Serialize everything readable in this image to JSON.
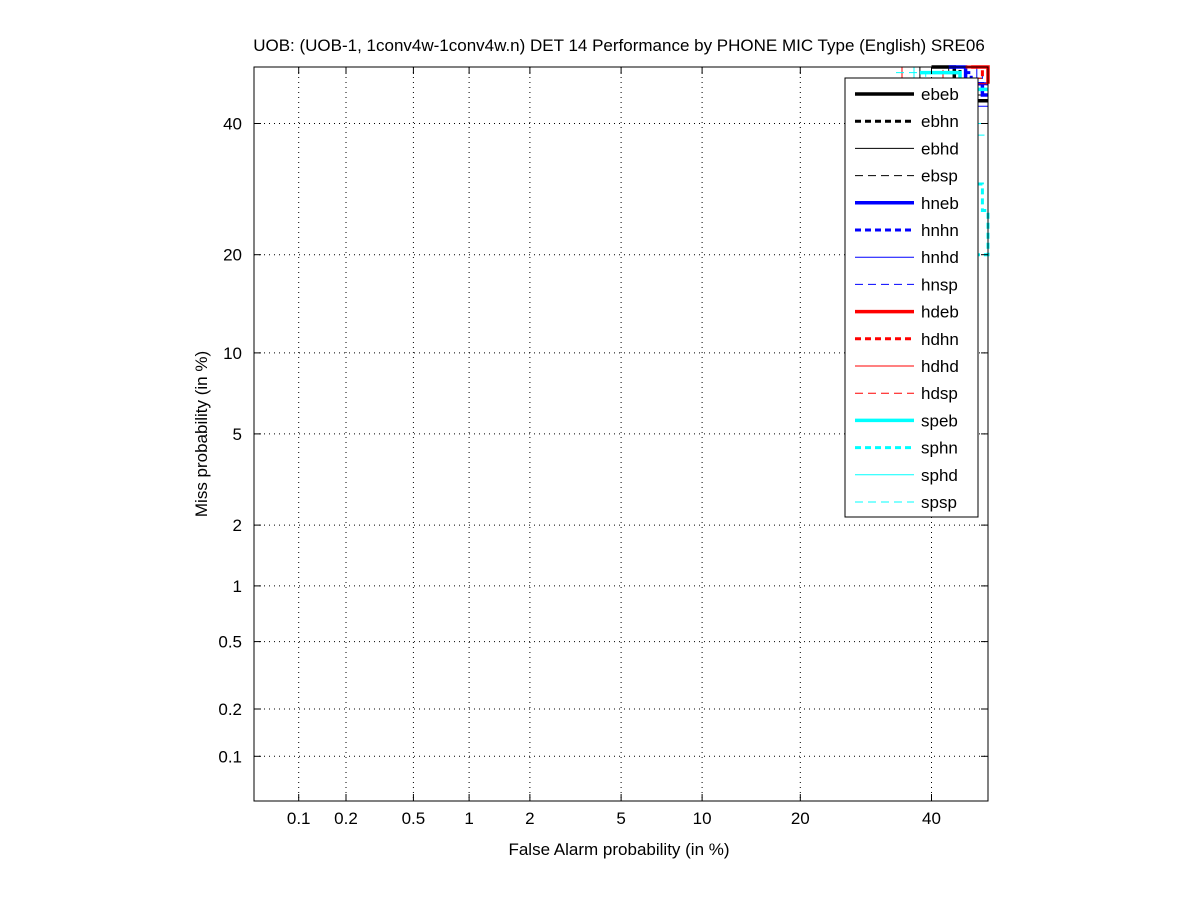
{
  "chart_data": {
    "type": "line",
    "title": "UOB: (UOB-1, 1conv4w-1conv4w.n) DET 14 Performance by PHONE MIC Type (English) SRE06",
    "xlabel": "False Alarm probability (in %)",
    "ylabel": "Miss probability (in %)",
    "scale": "normal-deviate (probit)",
    "xlim": [
      0.05,
      50
    ],
    "ylim": [
      0.05,
      50
    ],
    "x_ticks": [
      0.1,
      0.2,
      0.5,
      1,
      2,
      5,
      10,
      20,
      40
    ],
    "x_tick_labels": [
      "0.1",
      "0.2",
      "0.5",
      "1",
      "2",
      "5",
      "10",
      "20",
      "40"
    ],
    "y_ticks": [
      0.1,
      0.2,
      0.5,
      1,
      2,
      5,
      10,
      20,
      40
    ],
    "y_tick_labels": [
      "0.1",
      "0.2",
      "0.5",
      "1",
      "2",
      "5",
      "10",
      "20",
      "40"
    ],
    "grid": true,
    "legend_position": "top-right",
    "series": [
      {
        "name": "ebeb",
        "color": "#000000",
        "width": 3.5,
        "dash": "",
        "points": [
          [
            40,
            50
          ],
          [
            44,
            50
          ],
          [
            44,
            46
          ],
          [
            47,
            46
          ],
          [
            47,
            44
          ],
          [
            50,
            44
          ]
        ]
      },
      {
        "name": "ebhn",
        "color": "#000000",
        "width": 3,
        "dash": "6,4",
        "points": [
          [
            42,
            50
          ],
          [
            45,
            50
          ],
          [
            45,
            47
          ],
          [
            50,
            47
          ]
        ]
      },
      {
        "name": "ebhd",
        "color": "#000000",
        "width": 1,
        "dash": "",
        "points": [
          [
            30,
            50
          ],
          [
            38,
            50
          ],
          [
            38,
            47
          ],
          [
            44,
            47
          ],
          [
            44,
            45
          ],
          [
            50,
            45
          ]
        ]
      },
      {
        "name": "ebsp",
        "color": "#000000",
        "width": 1,
        "dash": "8,5",
        "points": [
          [
            36,
            50
          ],
          [
            43,
            50
          ],
          [
            43,
            48
          ],
          [
            50,
            48
          ]
        ]
      },
      {
        "name": "hneb",
        "color": "#0000ff",
        "width": 3.5,
        "dash": "",
        "points": [
          [
            43,
            50
          ],
          [
            46,
            50
          ],
          [
            46,
            47
          ],
          [
            49,
            47
          ],
          [
            49,
            45
          ],
          [
            50,
            45
          ]
        ]
      },
      {
        "name": "hnhn",
        "color": "#0000ff",
        "width": 3,
        "dash": "6,4",
        "points": [
          [
            44,
            49
          ],
          [
            47,
            49
          ],
          [
            47,
            47
          ],
          [
            50,
            47
          ]
        ]
      },
      {
        "name": "hnhd",
        "color": "#0000ff",
        "width": 1,
        "dash": "",
        "points": [
          [
            40,
            50
          ],
          [
            48,
            50
          ],
          [
            48,
            43
          ],
          [
            50,
            43
          ]
        ]
      },
      {
        "name": "hnsp",
        "color": "#0000ff",
        "width": 1,
        "dash": "8,5",
        "points": [
          [
            45,
            50
          ],
          [
            49,
            50
          ],
          [
            49,
            46
          ],
          [
            50,
            46
          ]
        ]
      },
      {
        "name": "hdeb",
        "color": "#ff0000",
        "width": 3.5,
        "dash": "",
        "points": [
          [
            47,
            50
          ],
          [
            50,
            50
          ],
          [
            50,
            47
          ]
        ]
      },
      {
        "name": "hdhn",
        "color": "#ff0000",
        "width": 3,
        "dash": "6,4",
        "points": [
          [
            46,
            50
          ],
          [
            49,
            50
          ],
          [
            49,
            48
          ]
        ]
      },
      {
        "name": "hdhd",
        "color": "#ff0000",
        "width": 1,
        "dash": "",
        "points": [
          [
            35,
            50
          ],
          [
            35,
            47
          ],
          [
            50,
            47
          ]
        ]
      },
      {
        "name": "hdsp",
        "color": "#ff0000",
        "width": 1,
        "dash": "8,5",
        "points": [
          [
            38,
            50
          ],
          [
            42,
            50
          ],
          [
            42,
            48
          ],
          [
            50,
            48
          ]
        ]
      },
      {
        "name": "speb",
        "color": "#00ffff",
        "width": 3.5,
        "dash": "",
        "points": [
          [
            38,
            49
          ],
          [
            45,
            49
          ],
          [
            45,
            46
          ],
          [
            50,
            46
          ]
        ]
      },
      {
        "name": "sphn",
        "color": "#00ffff",
        "width": 3,
        "dash": "6,4",
        "points": [
          [
            48,
            30
          ],
          [
            49,
            30
          ],
          [
            49,
            26
          ],
          [
            50,
            26
          ],
          [
            50,
            20
          ],
          [
            48,
            20
          ]
        ]
      },
      {
        "name": "sphd",
        "color": "#00ffff",
        "width": 1,
        "dash": "",
        "points": [
          [
            28,
            50
          ],
          [
            37,
            50
          ],
          [
            37,
            48
          ],
          [
            43,
            48
          ],
          [
            43,
            44
          ],
          [
            48,
            44
          ],
          [
            48,
            40
          ],
          [
            50,
            40
          ]
        ]
      },
      {
        "name": "spsp",
        "color": "#00ffff",
        "width": 1,
        "dash": "8,5",
        "points": [
          [
            34,
            49
          ],
          [
            39,
            49
          ],
          [
            39,
            47
          ],
          [
            46,
            47
          ],
          [
            46,
            38
          ],
          [
            50,
            38
          ]
        ]
      }
    ]
  }
}
